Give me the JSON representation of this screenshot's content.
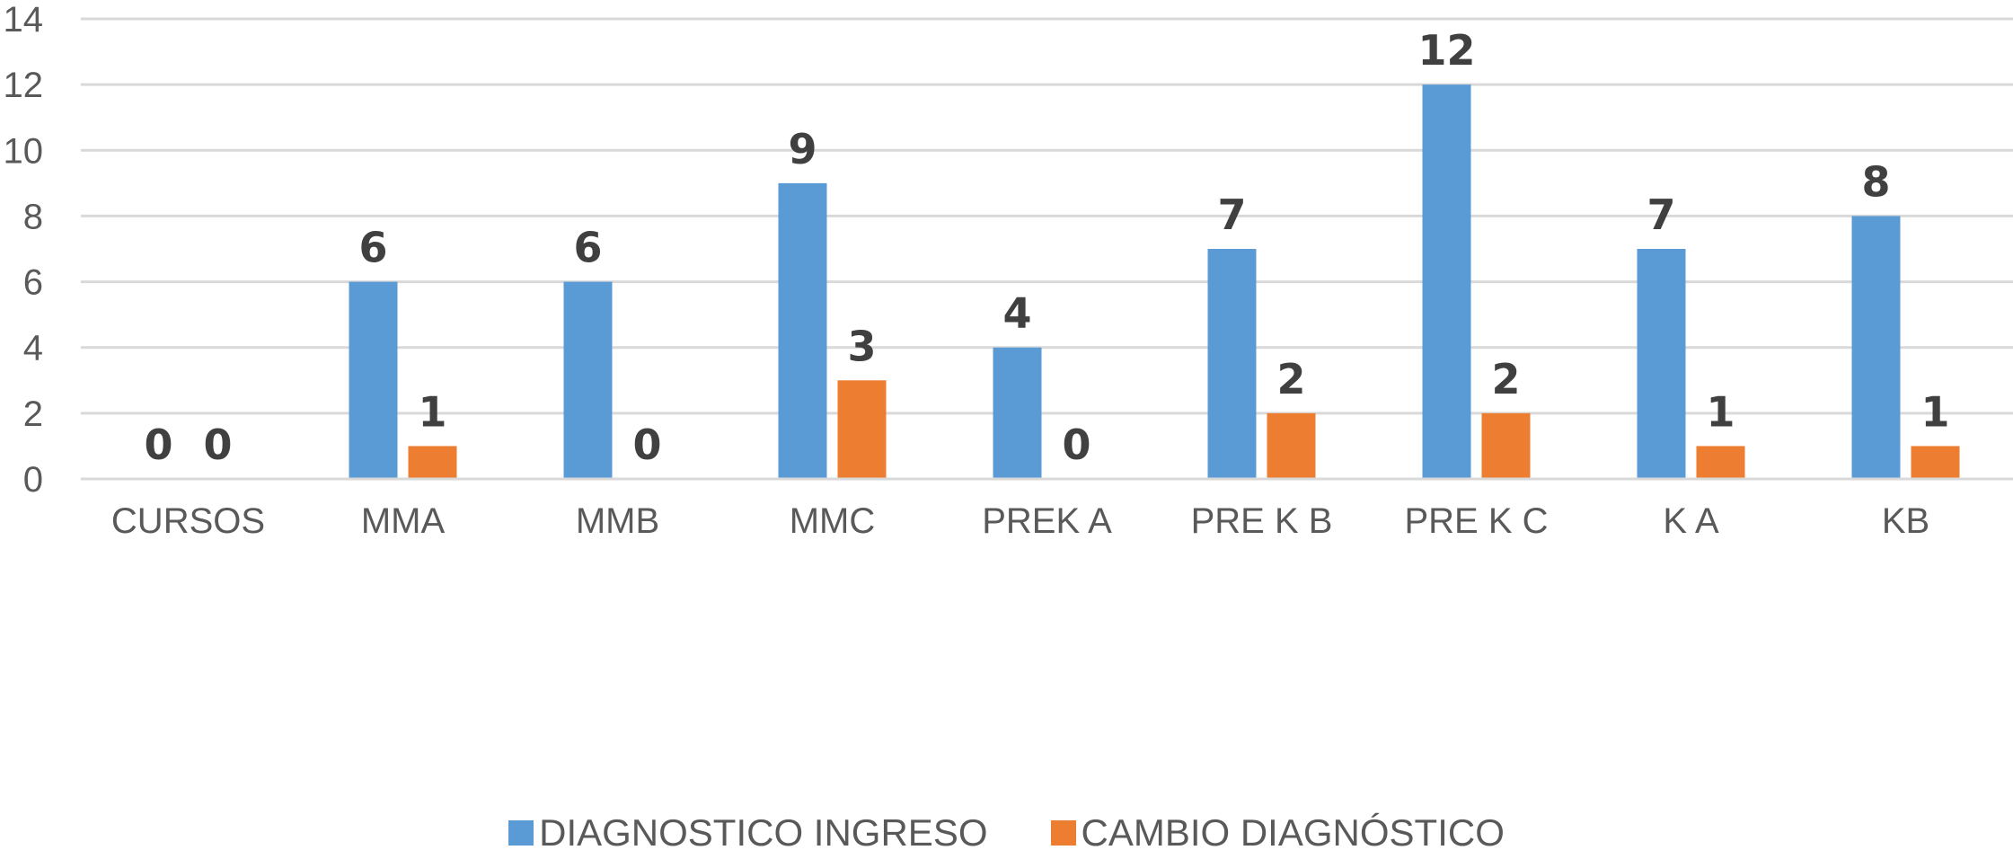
{
  "chart_data": {
    "type": "bar",
    "categories": [
      "CURSOS",
      "MMA",
      "MMB",
      "MMC",
      "PREK A",
      "PRE K B",
      "PRE K C",
      "K A",
      "KB"
    ],
    "series": [
      {
        "name": "DIAGNOSTICO INGRESO",
        "color": "#5b9bd5",
        "values": [
          0,
          6,
          6,
          9,
          4,
          7,
          12,
          7,
          8
        ]
      },
      {
        "name": "CAMBIO DIAGNÓSTICO",
        "color": "#ed7d31",
        "values": [
          0,
          1,
          0,
          3,
          0,
          2,
          2,
          1,
          1
        ]
      }
    ],
    "data_labels": [
      [
        "0",
        "6",
        "6",
        "9",
        "4",
        "7",
        "12",
        "7",
        "8"
      ],
      [
        "0",
        "1",
        "0",
        "3",
        "0",
        "2",
        "2",
        "1",
        "1"
      ]
    ],
    "yticks": [
      "0",
      "2",
      "4",
      "6",
      "8",
      "10",
      "12",
      "14"
    ],
    "ylim": [
      0,
      14
    ],
    "grid": true,
    "legend_position": "bottom",
    "title": "",
    "xlabel": "",
    "ylabel": ""
  }
}
